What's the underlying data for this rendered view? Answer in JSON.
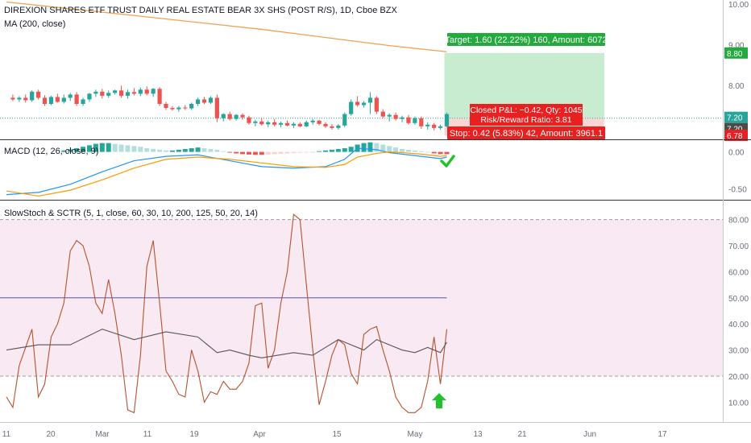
{
  "header": {
    "title": "DIREXION SHARES ETF TRUST DAILY REAL ESTATE BEAR 3X SHS (POST R/S), 1D, Cboe BZX",
    "ma_label": "MA (200, close)"
  },
  "trade": {
    "target": "Target: 1.60 (22.22%) 160, Amount: 6072",
    "closed_pnl": "Closed P&L: −0.42, Qty: 1045",
    "risk_reward": "Risk/Reward Ratio: 3.81",
    "stop": "Stop: 0.42 (5.83%) 42, Amount: 3961.1",
    "target_level": 8.8,
    "entry_level": 7.2,
    "stop_level": 6.78
  },
  "price_badges": [
    "8.80",
    "7.20",
    "7.20",
    "6.78"
  ],
  "colors": {
    "up": "#26a69a",
    "down": "#ef5350",
    "ma": "#f2a150",
    "macd_line": "#2196f3",
    "signal_line": "#ff9800",
    "stoch": "#b5522e",
    "sctr": "#555555",
    "mid_line": "#5a56a8",
    "target_fill": "#c8ecd0",
    "stop_fill": "#fdd5d5",
    "target_badge": "#22ab3c",
    "stop_badge": "#e82020",
    "badge_dark": "#4a4a4a",
    "band_fill": "#f9e9f3",
    "check_icon": "#22c22e",
    "arrow_icon": "#22c22e"
  },
  "macd": {
    "label": "MACD (12, 26, close, 9)"
  },
  "stoch": {
    "label": "SlowStoch & SCTR (5, 1, close, 60, 30, 10, 200, 125, 50, 20, 14)"
  },
  "xaxis": {
    "labels": [
      "11",
      "20",
      "Mar",
      "11",
      "19",
      "Apr",
      "15",
      "May",
      "13",
      "21",
      "Jun",
      "17"
    ]
  },
  "chart_data": [
    {
      "type": "candlestick",
      "title": "DIREXION SHARES ETF TRUST DAILY REAL ESTATE BEAR 3X SHS (POST R/S), 1D, Cboe BZX",
      "ylim": [
        6.7,
        10.1
      ],
      "yticks": [
        "10.00",
        "9.00",
        "8.00",
        "7.00"
      ],
      "ytick_values": [
        10,
        9,
        8,
        7
      ],
      "x_range": [
        0,
        97
      ],
      "candles": [
        {
          "t": 1,
          "o": 7.7,
          "h": 7.78,
          "l": 7.62,
          "c": 7.66
        },
        {
          "t": 2,
          "o": 7.66,
          "h": 7.74,
          "l": 7.6,
          "c": 7.7
        },
        {
          "t": 3,
          "o": 7.7,
          "h": 7.78,
          "l": 7.58,
          "c": 7.64
        },
        {
          "t": 4,
          "o": 7.64,
          "h": 7.88,
          "l": 7.6,
          "c": 7.85
        },
        {
          "t": 5,
          "o": 7.85,
          "h": 7.9,
          "l": 7.66,
          "c": 7.7
        },
        {
          "t": 6,
          "o": 7.7,
          "h": 7.76,
          "l": 7.5,
          "c": 7.55
        },
        {
          "t": 7,
          "o": 7.55,
          "h": 7.75,
          "l": 7.52,
          "c": 7.72
        },
        {
          "t": 8,
          "o": 7.72,
          "h": 7.8,
          "l": 7.58,
          "c": 7.6
        },
        {
          "t": 9,
          "o": 7.6,
          "h": 7.78,
          "l": 7.56,
          "c": 7.7
        },
        {
          "t": 10,
          "o": 7.7,
          "h": 7.82,
          "l": 7.62,
          "c": 7.78
        },
        {
          "t": 11,
          "o": 7.78,
          "h": 7.84,
          "l": 7.5,
          "c": 7.55
        },
        {
          "t": 12,
          "o": 7.55,
          "h": 7.7,
          "l": 7.5,
          "c": 7.66
        },
        {
          "t": 13,
          "o": 7.66,
          "h": 7.82,
          "l": 7.6,
          "c": 7.8
        },
        {
          "t": 14,
          "o": 7.8,
          "h": 7.9,
          "l": 7.72,
          "c": 7.85
        },
        {
          "t": 15,
          "o": 7.85,
          "h": 7.92,
          "l": 7.68,
          "c": 7.75
        },
        {
          "t": 16,
          "o": 7.75,
          "h": 7.88,
          "l": 7.7,
          "c": 7.82
        },
        {
          "t": 17,
          "o": 7.82,
          "h": 7.9,
          "l": 7.78,
          "c": 7.88
        },
        {
          "t": 18,
          "o": 7.88,
          "h": 8.0,
          "l": 7.7,
          "c": 7.75
        },
        {
          "t": 19,
          "o": 7.75,
          "h": 7.9,
          "l": 7.68,
          "c": 7.84
        },
        {
          "t": 20,
          "o": 7.84,
          "h": 7.94,
          "l": 7.76,
          "c": 7.8
        },
        {
          "t": 21,
          "o": 7.8,
          "h": 7.95,
          "l": 7.74,
          "c": 7.9
        },
        {
          "t": 22,
          "o": 7.9,
          "h": 7.98,
          "l": 7.76,
          "c": 7.8
        },
        {
          "t": 23,
          "o": 7.8,
          "h": 7.94,
          "l": 7.72,
          "c": 7.92
        },
        {
          "t": 24,
          "o": 7.92,
          "h": 7.96,
          "l": 7.5,
          "c": 7.55
        },
        {
          "t": 25,
          "o": 7.55,
          "h": 7.6,
          "l": 7.4,
          "c": 7.45
        },
        {
          "t": 26,
          "o": 7.45,
          "h": 7.5,
          "l": 7.38,
          "c": 7.42
        },
        {
          "t": 27,
          "o": 7.42,
          "h": 7.5,
          "l": 7.36,
          "c": 7.46
        },
        {
          "t": 28,
          "o": 7.46,
          "h": 7.52,
          "l": 7.4,
          "c": 7.44
        },
        {
          "t": 29,
          "o": 7.44,
          "h": 7.58,
          "l": 7.4,
          "c": 7.55
        },
        {
          "t": 30,
          "o": 7.55,
          "h": 7.7,
          "l": 7.5,
          "c": 7.66
        },
        {
          "t": 31,
          "o": 7.66,
          "h": 7.72,
          "l": 7.54,
          "c": 7.58
        },
        {
          "t": 32,
          "o": 7.58,
          "h": 7.74,
          "l": 7.55,
          "c": 7.7
        },
        {
          "t": 33,
          "o": 7.7,
          "h": 7.78,
          "l": 7.1,
          "c": 7.2
        },
        {
          "t": 34,
          "o": 7.2,
          "h": 7.32,
          "l": 7.12,
          "c": 7.3
        },
        {
          "t": 35,
          "o": 7.3,
          "h": 7.36,
          "l": 7.14,
          "c": 7.18
        },
        {
          "t": 36,
          "o": 7.18,
          "h": 7.3,
          "l": 7.14,
          "c": 7.28
        },
        {
          "t": 37,
          "o": 7.28,
          "h": 7.32,
          "l": 7.16,
          "c": 7.22
        },
        {
          "t": 38,
          "o": 7.22,
          "h": 7.26,
          "l": 7.04,
          "c": 7.08
        },
        {
          "t": 39,
          "o": 7.08,
          "h": 7.16,
          "l": 7.0,
          "c": 7.12
        },
        {
          "t": 40,
          "o": 7.12,
          "h": 7.2,
          "l": 7.02,
          "c": 7.05
        },
        {
          "t": 41,
          "o": 7.05,
          "h": 7.14,
          "l": 6.98,
          "c": 7.1
        },
        {
          "t": 42,
          "o": 7.1,
          "h": 7.18,
          "l": 7.0,
          "c": 7.04
        },
        {
          "t": 43,
          "o": 7.04,
          "h": 7.12,
          "l": 6.98,
          "c": 7.08
        },
        {
          "t": 44,
          "o": 7.08,
          "h": 7.14,
          "l": 7.0,
          "c": 7.02
        },
        {
          "t": 45,
          "o": 7.02,
          "h": 7.1,
          "l": 6.96,
          "c": 7.06
        },
        {
          "t": 46,
          "o": 7.06,
          "h": 7.1,
          "l": 6.98,
          "c": 7.0
        },
        {
          "t": 47,
          "o": 7.0,
          "h": 7.14,
          "l": 6.98,
          "c": 7.1
        },
        {
          "t": 48,
          "o": 7.1,
          "h": 7.18,
          "l": 7.04,
          "c": 7.14
        },
        {
          "t": 49,
          "o": 7.14,
          "h": 7.16,
          "l": 7.02,
          "c": 7.06
        },
        {
          "t": 50,
          "o": 7.06,
          "h": 7.1,
          "l": 6.96,
          "c": 7.0
        },
        {
          "t": 51,
          "o": 7.0,
          "h": 7.06,
          "l": 6.92,
          "c": 6.96
        },
        {
          "t": 52,
          "o": 6.96,
          "h": 7.06,
          "l": 6.92,
          "c": 7.02
        },
        {
          "t": 53,
          "o": 7.02,
          "h": 7.34,
          "l": 6.98,
          "c": 7.3
        },
        {
          "t": 54,
          "o": 7.3,
          "h": 7.66,
          "l": 7.26,
          "c": 7.6
        },
        {
          "t": 55,
          "o": 7.6,
          "h": 7.74,
          "l": 7.48,
          "c": 7.52
        },
        {
          "t": 56,
          "o": 7.52,
          "h": 7.62,
          "l": 7.46,
          "c": 7.58
        },
        {
          "t": 57,
          "o": 7.58,
          "h": 7.84,
          "l": 7.3,
          "c": 7.7
        },
        {
          "t": 58,
          "o": 7.7,
          "h": 7.74,
          "l": 7.3,
          "c": 7.36
        },
        {
          "t": 59,
          "o": 7.36,
          "h": 7.42,
          "l": 7.2,
          "c": 7.24
        },
        {
          "t": 60,
          "o": 7.24,
          "h": 7.32,
          "l": 7.12,
          "c": 7.28
        },
        {
          "t": 61,
          "o": 7.28,
          "h": 7.34,
          "l": 7.14,
          "c": 7.18
        },
        {
          "t": 62,
          "o": 7.18,
          "h": 7.26,
          "l": 7.1,
          "c": 7.22
        },
        {
          "t": 63,
          "o": 7.22,
          "h": 7.28,
          "l": 7.04,
          "c": 7.08
        },
        {
          "t": 64,
          "o": 7.08,
          "h": 7.24,
          "l": 7.04,
          "c": 7.2
        },
        {
          "t": 65,
          "o": 7.2,
          "h": 7.24,
          "l": 6.94,
          "c": 7.0
        },
        {
          "t": 66,
          "o": 7.0,
          "h": 7.1,
          "l": 6.92,
          "c": 7.04
        },
        {
          "t": 67,
          "o": 7.04,
          "h": 7.08,
          "l": 6.9,
          "c": 6.96
        },
        {
          "t": 68,
          "o": 6.96,
          "h": 7.04,
          "l": 6.92,
          "c": 7.0
        },
        {
          "t": 69,
          "o": 7.0,
          "h": 7.34,
          "l": 6.98,
          "c": 7.3
        }
      ],
      "ma": {
        "name": "MA (200, close)",
        "t": [
          0,
          20,
          40,
          60,
          69
        ],
        "values": [
          10.05,
          9.72,
          9.38,
          8.98,
          8.83
        ]
      }
    },
    {
      "type": "line",
      "title": "MACD (12, 26, close, 9)",
      "ylim": [
        -0.65,
        0.16
      ],
      "yticks": [
        "0.00",
        "-0.50"
      ],
      "ytick_values": [
        0,
        -0.5
      ],
      "x_range": [
        0,
        97
      ],
      "histogram": {
        "t": [
          9,
          10,
          11,
          12,
          13,
          14,
          15,
          16,
          17,
          18,
          19,
          20,
          21,
          22,
          23,
          24,
          25,
          26,
          27,
          28,
          29,
          30,
          31,
          32,
          33,
          34,
          35,
          36,
          37,
          38,
          39,
          40,
          41,
          42,
          43,
          44,
          45,
          46,
          47,
          48,
          49,
          50,
          51,
          52,
          53,
          54,
          55,
          56,
          57,
          58,
          59,
          60,
          61,
          62,
          63,
          64,
          65,
          66,
          67,
          68,
          69
        ],
        "values": [
          0.02,
          0.035,
          0.05,
          0.07,
          0.09,
          0.11,
          0.12,
          0.12,
          0.11,
          0.1,
          0.09,
          0.08,
          0.07,
          0.05,
          0.04,
          0.03,
          0.02,
          0.02,
          0.03,
          0.04,
          0.05,
          0.06,
          0.05,
          0.04,
          0.03,
          0.01,
          -0.01,
          -0.02,
          -0.03,
          -0.035,
          -0.04,
          -0.04,
          -0.035,
          -0.03,
          -0.025,
          -0.02,
          -0.015,
          -0.01,
          -0.005,
          0.0,
          0.01,
          0.02,
          0.03,
          0.04,
          0.05,
          0.07,
          0.1,
          0.12,
          0.13,
          0.12,
          0.1,
          0.08,
          0.06,
          0.04,
          0.03,
          0.02,
          0.01,
          0.0,
          -0.02,
          -0.03,
          -0.03
        ]
      },
      "series": [
        {
          "name": "MACD",
          "t": [
            0,
            5,
            10,
            15,
            20,
            25,
            30,
            35,
            40,
            45,
            50,
            53,
            55,
            58,
            60,
            62,
            65,
            68,
            69
          ],
          "values": [
            -0.58,
            -0.55,
            -0.44,
            -0.27,
            -0.12,
            -0.06,
            -0.04,
            -0.12,
            -0.2,
            -0.22,
            -0.2,
            -0.1,
            0.05,
            0.03,
            -0.01,
            -0.03,
            -0.06,
            -0.09,
            -0.07
          ]
        },
        {
          "name": "Signal",
          "t": [
            0,
            5,
            10,
            15,
            20,
            25,
            30,
            35,
            40,
            45,
            50,
            53,
            55,
            58,
            60,
            62,
            65,
            68,
            69
          ],
          "values": [
            -0.53,
            -0.6,
            -0.52,
            -0.38,
            -0.22,
            -0.1,
            -0.07,
            -0.1,
            -0.15,
            -0.2,
            -0.21,
            -0.17,
            -0.07,
            -0.02,
            0.0,
            -0.01,
            -0.03,
            -0.06,
            -0.05
          ]
        }
      ]
    },
    {
      "type": "line",
      "title": "SlowStoch & SCTR (5, 1, close, 60, 30, 10, 200, 125, 50, 20, 14)",
      "ylim": [
        3,
        87
      ],
      "yticks": [
        "80.00",
        "70.00",
        "60.00",
        "50.00",
        "40.00",
        "30.00",
        "20.00",
        "10.00"
      ],
      "ytick_values": [
        80,
        70,
        60,
        50,
        40,
        30,
        20,
        10
      ],
      "bands": [
        20,
        80
      ],
      "midline": 50,
      "x_range": [
        0,
        97
      ],
      "series": [
        {
          "name": "SlowStoch",
          "t": [
            0,
            1,
            2,
            3,
            4,
            5,
            6,
            7,
            8,
            9,
            10,
            11,
            12,
            13,
            14,
            15,
            16,
            17,
            18,
            19,
            20,
            21,
            22,
            23,
            24,
            25,
            26,
            27,
            28,
            29,
            30,
            31,
            32,
            33,
            34,
            35,
            36,
            37,
            38,
            39,
            40,
            41,
            42,
            43,
            44,
            45,
            46,
            47,
            48,
            49,
            50,
            51,
            52,
            53,
            54,
            55,
            56,
            57,
            58,
            59,
            60,
            61,
            62,
            63,
            64,
            65,
            66,
            67,
            68,
            69
          ],
          "values": [
            12,
            8,
            24,
            31,
            38,
            12,
            17,
            35,
            40,
            48,
            68,
            72,
            70,
            62,
            48,
            44,
            57,
            44,
            28,
            7,
            6,
            28,
            62,
            72,
            48,
            22,
            18,
            13,
            12,
            30,
            22,
            10,
            14,
            13,
            18,
            15,
            15,
            18,
            25,
            47,
            48,
            23,
            30,
            48,
            60,
            82,
            80,
            55,
            30,
            9,
            18,
            28,
            34,
            32,
            21,
            17,
            36,
            38,
            39,
            30,
            22,
            12,
            8,
            6,
            6,
            8,
            18,
            35,
            17,
            38
          ]
        },
        {
          "name": "SCTR",
          "t": [
            0,
            5,
            10,
            15,
            20,
            25,
            30,
            33,
            35,
            38,
            40,
            45,
            48,
            50,
            52,
            54,
            56,
            58,
            60,
            62,
            64,
            66,
            67,
            68,
            69
          ],
          "values": [
            30,
            32,
            32,
            38,
            34,
            37,
            35,
            29,
            30,
            28,
            27,
            29,
            28,
            31,
            34,
            32,
            30,
            34,
            32,
            30,
            29,
            31,
            30,
            29,
            33
          ]
        }
      ]
    }
  ]
}
